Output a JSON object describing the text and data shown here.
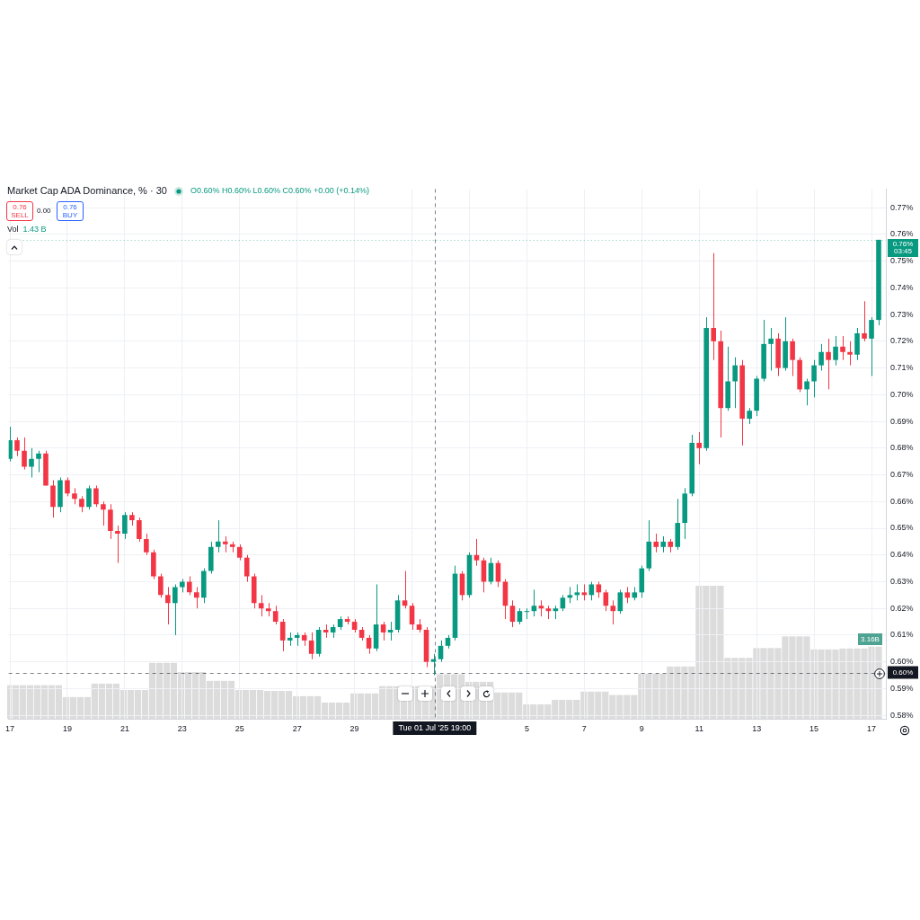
{
  "chart_data": [
    {
      "type": "candlestick",
      "title": "Market Cap ADA Dominance, % · 30",
      "annotations": [
        "O0.60% H0.60% L0.60% C0.60% +0.00 (+0.14%)",
        "0.76",
        "SELL",
        "0.00",
        "0.76",
        "BUY",
        "Vol",
        "1.43 B"
      ],
      "x": [
        "2025-06-17T00:00",
        "2025-06-17T06:00",
        "2025-06-17T12:00",
        "2025-06-17T18:00",
        "2025-06-18T00:00",
        "2025-06-18T06:00",
        "2025-06-18T12:00",
        "2025-06-18T18:00",
        "2025-06-19T00:00",
        "2025-06-19T06:00",
        "2025-06-19T12:00",
        "2025-06-19T18:00",
        "2025-06-20T00:00",
        "2025-06-20T06:00",
        "2025-06-20T12:00",
        "2025-06-20T18:00",
        "2025-06-21T00:00",
        "2025-06-21T06:00",
        "2025-06-21T12:00",
        "2025-06-21T18:00",
        "2025-06-22T00:00",
        "2025-06-22T06:00",
        "2025-06-22T12:00",
        "2025-06-22T18:00",
        "2025-06-23T00:00",
        "2025-06-23T06:00",
        "2025-06-23T12:00",
        "2025-06-23T18:00",
        "2025-06-24T00:00",
        "2025-06-24T06:00",
        "2025-06-24T12:00",
        "2025-06-24T18:00",
        "2025-06-25T00:00",
        "2025-06-25T06:00",
        "2025-06-25T12:00",
        "2025-06-25T18:00",
        "2025-06-26T00:00",
        "2025-06-26T06:00",
        "2025-06-26T12:00",
        "2025-06-26T18:00",
        "2025-06-27T00:00",
        "2025-06-27T06:00",
        "2025-06-27T12:00",
        "2025-06-27T18:00",
        "2025-06-28T00:00",
        "2025-06-28T06:00",
        "2025-06-28T12:00",
        "2025-06-28T18:00",
        "2025-06-29T00:00",
        "2025-06-29T06:00",
        "2025-06-29T12:00",
        "2025-06-29T18:00",
        "2025-06-30T00:00",
        "2025-06-30T06:00",
        "2025-06-30T12:00",
        "2025-06-30T18:00",
        "2025-07-01T00:00",
        "2025-07-01T06:00",
        "2025-07-01T12:00",
        "2025-07-01T18:00",
        "2025-07-02T00:00",
        "2025-07-02T06:00",
        "2025-07-02T12:00",
        "2025-07-02T18:00",
        "2025-07-03T00:00",
        "2025-07-03T06:00",
        "2025-07-03T12:00",
        "2025-07-03T18:00",
        "2025-07-04T00:00",
        "2025-07-04T06:00",
        "2025-07-04T12:00",
        "2025-07-04T18:00",
        "2025-07-05T00:00",
        "2025-07-05T06:00",
        "2025-07-05T12:00",
        "2025-07-05T18:00",
        "2025-07-06T00:00",
        "2025-07-06T06:00",
        "2025-07-06T12:00",
        "2025-07-06T18:00",
        "2025-07-07T00:00",
        "2025-07-07T06:00",
        "2025-07-07T12:00",
        "2025-07-07T18:00",
        "2025-07-08T00:00",
        "2025-07-08T06:00",
        "2025-07-08T12:00",
        "2025-07-08T18:00",
        "2025-07-09T00:00",
        "2025-07-09T06:00",
        "2025-07-09T12:00",
        "2025-07-09T18:00",
        "2025-07-10T00:00",
        "2025-07-10T06:00",
        "2025-07-10T12:00",
        "2025-07-10T18:00",
        "2025-07-11T00:00",
        "2025-07-11T06:00",
        "2025-07-11T12:00",
        "2025-07-11T18:00",
        "2025-07-12T00:00",
        "2025-07-12T06:00",
        "2025-07-12T12:00",
        "2025-07-12T18:00",
        "2025-07-13T00:00",
        "2025-07-13T06:00",
        "2025-07-13T12:00",
        "2025-07-13T18:00",
        "2025-07-14T00:00",
        "2025-07-14T06:00",
        "2025-07-14T12:00",
        "2025-07-14T18:00",
        "2025-07-15T00:00",
        "2025-07-15T06:00",
        "2025-07-15T12:00",
        "2025-07-15T18:00",
        "2025-07-16T00:00",
        "2025-07-16T06:00",
        "2025-07-16T12:00",
        "2025-07-16T18:00",
        "2025-07-17T00:00",
        "2025-07-17T06:00"
      ],
      "ohlc": [
        [
          0.676,
          0.688,
          0.675,
          0.683
        ],
        [
          0.683,
          0.684,
          0.677,
          0.679
        ],
        [
          0.679,
          0.684,
          0.672,
          0.673
        ],
        [
          0.673,
          0.68,
          0.669,
          0.676
        ],
        [
          0.676,
          0.679,
          0.671,
          0.678
        ],
        [
          0.678,
          0.679,
          0.666,
          0.666
        ],
        [
          0.666,
          0.668,
          0.654,
          0.658
        ],
        [
          0.658,
          0.669,
          0.656,
          0.668
        ],
        [
          0.668,
          0.669,
          0.662,
          0.663
        ],
        [
          0.663,
          0.665,
          0.659,
          0.661
        ],
        [
          0.661,
          0.662,
          0.656,
          0.658
        ],
        [
          0.658,
          0.666,
          0.657,
          0.665
        ],
        [
          0.665,
          0.666,
          0.658,
          0.659
        ],
        [
          0.659,
          0.66,
          0.651,
          0.657
        ],
        [
          0.657,
          0.659,
          0.646,
          0.649
        ],
        [
          0.649,
          0.651,
          0.637,
          0.648
        ],
        [
          0.648,
          0.656,
          0.646,
          0.655
        ],
        [
          0.655,
          0.656,
          0.651,
          0.653
        ],
        [
          0.653,
          0.654,
          0.645,
          0.646
        ],
        [
          0.646,
          0.648,
          0.64,
          0.641
        ],
        [
          0.641,
          0.642,
          0.631,
          0.632
        ],
        [
          0.632,
          0.633,
          0.624,
          0.625
        ],
        [
          0.625,
          0.628,
          0.614,
          0.622
        ],
        [
          0.622,
          0.629,
          0.61,
          0.628
        ],
        [
          0.628,
          0.631,
          0.626,
          0.63
        ],
        [
          0.63,
          0.632,
          0.625,
          0.626
        ],
        [
          0.626,
          0.628,
          0.62,
          0.624
        ],
        [
          0.624,
          0.635,
          0.622,
          0.634
        ],
        [
          0.634,
          0.645,
          0.633,
          0.643
        ],
        [
          0.643,
          0.653,
          0.641,
          0.645
        ],
        [
          0.645,
          0.647,
          0.641,
          0.644
        ],
        [
          0.644,
          0.645,
          0.641,
          0.643
        ],
        [
          0.643,
          0.644,
          0.638,
          0.639
        ],
        [
          0.639,
          0.64,
          0.63,
          0.632
        ],
        [
          0.632,
          0.633,
          0.62,
          0.622
        ],
        [
          0.622,
          0.625,
          0.617,
          0.62
        ],
        [
          0.62,
          0.622,
          0.617,
          0.619
        ],
        [
          0.619,
          0.621,
          0.614,
          0.615
        ],
        [
          0.615,
          0.616,
          0.604,
          0.608
        ],
        [
          0.608,
          0.611,
          0.606,
          0.609
        ],
        [
          0.609,
          0.611,
          0.606,
          0.61
        ],
        [
          0.61,
          0.611,
          0.606,
          0.608
        ],
        [
          0.608,
          0.611,
          0.601,
          0.603
        ],
        [
          0.603,
          0.613,
          0.602,
          0.612
        ],
        [
          0.612,
          0.614,
          0.609,
          0.611
        ],
        [
          0.611,
          0.614,
          0.609,
          0.613
        ],
        [
          0.613,
          0.617,
          0.612,
          0.616
        ],
        [
          0.616,
          0.617,
          0.614,
          0.615
        ],
        [
          0.615,
          0.616,
          0.611,
          0.612
        ],
        [
          0.612,
          0.613,
          0.608,
          0.609
        ],
        [
          0.609,
          0.61,
          0.603,
          0.605
        ],
        [
          0.605,
          0.629,
          0.604,
          0.614
        ],
        [
          0.614,
          0.615,
          0.608,
          0.611
        ],
        [
          0.611,
          0.615,
          0.608,
          0.612
        ],
        [
          0.612,
          0.625,
          0.611,
          0.623
        ],
        [
          0.623,
          0.634,
          0.62,
          0.621
        ],
        [
          0.621,
          0.622,
          0.612,
          0.614
        ],
        [
          0.614,
          0.616,
          0.611,
          0.612
        ],
        [
          0.612,
          0.613,
          0.598,
          0.6
        ],
        [
          0.6,
          0.603,
          0.595,
          0.601
        ],
        [
          0.601,
          0.608,
          0.6,
          0.606
        ],
        [
          0.606,
          0.61,
          0.605,
          0.609
        ],
        [
          0.609,
          0.636,
          0.608,
          0.633
        ],
        [
          0.633,
          0.634,
          0.623,
          0.625
        ],
        [
          0.625,
          0.641,
          0.624,
          0.64
        ],
        [
          0.64,
          0.646,
          0.636,
          0.638
        ],
        [
          0.638,
          0.639,
          0.626,
          0.63
        ],
        [
          0.63,
          0.639,
          0.629,
          0.637
        ],
        [
          0.637,
          0.638,
          0.628,
          0.63
        ],
        [
          0.63,
          0.631,
          0.616,
          0.621
        ],
        [
          0.621,
          0.623,
          0.613,
          0.615
        ],
        [
          0.615,
          0.62,
          0.614,
          0.619
        ],
        [
          0.619,
          0.62,
          0.616,
          0.619
        ],
        [
          0.619,
          0.627,
          0.617,
          0.621
        ],
        [
          0.621,
          0.623,
          0.617,
          0.62
        ],
        [
          0.62,
          0.621,
          0.616,
          0.619
        ],
        [
          0.619,
          0.621,
          0.616,
          0.62
        ],
        [
          0.62,
          0.625,
          0.619,
          0.624
        ],
        [
          0.624,
          0.628,
          0.622,
          0.625
        ],
        [
          0.625,
          0.629,
          0.623,
          0.626
        ],
        [
          0.626,
          0.629,
          0.623,
          0.625
        ],
        [
          0.625,
          0.63,
          0.623,
          0.629
        ],
        [
          0.629,
          0.63,
          0.624,
          0.626
        ],
        [
          0.626,
          0.627,
          0.619,
          0.621
        ],
        [
          0.621,
          0.623,
          0.614,
          0.619
        ],
        [
          0.619,
          0.627,
          0.618,
          0.626
        ],
        [
          0.626,
          0.628,
          0.622,
          0.624
        ],
        [
          0.624,
          0.628,
          0.623,
          0.626
        ],
        [
          0.626,
          0.636,
          0.624,
          0.635
        ],
        [
          0.635,
          0.653,
          0.634,
          0.645
        ],
        [
          0.645,
          0.648,
          0.641,
          0.643
        ],
        [
          0.643,
          0.647,
          0.641,
          0.645
        ],
        [
          0.645,
          0.646,
          0.641,
          0.643
        ],
        [
          0.643,
          0.661,
          0.642,
          0.652
        ],
        [
          0.652,
          0.665,
          0.646,
          0.663
        ],
        [
          0.663,
          0.685,
          0.662,
          0.682
        ],
        [
          0.682,
          0.686,
          0.674,
          0.68
        ],
        [
          0.68,
          0.729,
          0.679,
          0.725
        ],
        [
          0.725,
          0.753,
          0.713,
          0.72
        ],
        [
          0.72,
          0.724,
          0.684,
          0.695
        ],
        [
          0.695,
          0.718,
          0.694,
          0.705
        ],
        [
          0.705,
          0.714,
          0.695,
          0.711
        ],
        [
          0.711,
          0.713,
          0.681,
          0.691
        ],
        [
          0.691,
          0.695,
          0.689,
          0.694
        ],
        [
          0.694,
          0.707,
          0.692,
          0.706
        ],
        [
          0.706,
          0.728,
          0.705,
          0.719
        ],
        [
          0.719,
          0.725,
          0.709,
          0.721
        ],
        [
          0.721,
          0.723,
          0.707,
          0.71
        ],
        [
          0.71,
          0.729,
          0.709,
          0.72
        ],
        [
          0.72,
          0.721,
          0.707,
          0.713
        ],
        [
          0.713,
          0.714,
          0.701,
          0.702
        ],
        [
          0.702,
          0.706,
          0.696,
          0.705
        ],
        [
          0.705,
          0.713,
          0.699,
          0.711
        ],
        [
          0.711,
          0.719,
          0.709,
          0.716
        ],
        [
          0.716,
          0.721,
          0.702,
          0.713
        ],
        [
          0.713,
          0.722,
          0.711,
          0.718
        ],
        [
          0.718,
          0.722,
          0.713,
          0.716
        ],
        [
          0.716,
          0.72,
          0.711,
          0.715
        ],
        [
          0.715,
          0.725,
          0.713,
          0.723
        ],
        [
          0.723,
          0.735,
          0.72,
          0.721
        ],
        [
          0.721,
          0.729,
          0.707,
          0.728
        ],
        [
          0.728,
          0.758,
          0.726,
          0.758
        ]
      ],
      "colors": [
        "#089981",
        "#f23645",
        "#f23645",
        "#089981",
        "#089981",
        "#f23645",
        "#f23645",
        "#089981",
        "#f23645",
        "#f23645",
        "#f23645",
        "#089981",
        "#f23645",
        "#f23645",
        "#f23645",
        "#f23645",
        "#089981",
        "#f23645",
        "#f23645",
        "#f23645",
        "#f23645",
        "#f23645",
        "#f23645",
        "#089981",
        "#089981",
        "#f23645",
        "#f23645",
        "#089981",
        "#089981",
        "#089981",
        "#f23645",
        "#f23645",
        "#f23645",
        "#f23645",
        "#f23645",
        "#f23645",
        "#f23645",
        "#f23645",
        "#f23645",
        "#089981",
        "#089981",
        "#f23645",
        "#f23645",
        "#089981",
        "#f23645",
        "#089981",
        "#089981",
        "#f23645",
        "#f23645",
        "#f23645",
        "#f23645",
        "#089981",
        "#f23645",
        "#089981",
        "#089981",
        "#f23645",
        "#f23645",
        "#f23645",
        "#f23645",
        "#089981",
        "#089981",
        "#089981",
        "#089981",
        "#f23645",
        "#089981",
        "#f23645",
        "#f23645",
        "#089981",
        "#f23645",
        "#f23645",
        "#f23645",
        "#089981",
        "#089981",
        "#089981",
        "#f23645",
        "#f23645",
        "#089981",
        "#089981",
        "#089981",
        "#089981",
        "#f23645",
        "#089981",
        "#f23645",
        "#f23645",
        "#f23645",
        "#089981",
        "#f23645",
        "#089981",
        "#089981",
        "#089981",
        "#f23645",
        "#089981",
        "#f23645",
        "#089981",
        "#089981",
        "#089981",
        "#f23645",
        "#089981",
        "#f23645",
        "#f23645",
        "#089981",
        "#089981",
        "#f23645",
        "#089981",
        "#089981",
        "#089981",
        "#089981",
        "#f23645",
        "#089981",
        "#f23645",
        "#f23645",
        "#089981",
        "#089981",
        "#089981",
        "#f23645",
        "#089981",
        "#f23645",
        "#f23645",
        "#089981",
        "#f23645",
        "#089981",
        "#089981"
      ],
      "xlim": [
        "2025-06-16T23:00",
        "2025-07-17T12:00"
      ],
      "ylim": [
        0.5787,
        0.777
      ],
      "xticks": [
        {
          "value": "2025-06-17",
          "label": "17"
        },
        {
          "value": "2025-06-19",
          "label": "19"
        },
        {
          "value": "2025-06-21",
          "label": "21"
        },
        {
          "value": "2025-06-23",
          "label": "23"
        },
        {
          "value": "2025-06-25",
          "label": "25"
        },
        {
          "value": "2025-06-27",
          "label": "27"
        },
        {
          "value": "2025-06-29",
          "label": "29"
        },
        {
          "value": "2025-07-01",
          "label": null
        },
        {
          "value": "2025-07-03",
          "label": null
        },
        {
          "value": "2025-07-05",
          "label": "5"
        },
        {
          "value": "2025-07-07",
          "label": "7"
        },
        {
          "value": "2025-07-09",
          "label": "9"
        },
        {
          "value": "2025-07-11",
          "label": "11"
        },
        {
          "value": "2025-07-13",
          "label": "13"
        },
        {
          "value": "2025-07-15",
          "label": "15"
        },
        {
          "value": "2025-07-17",
          "label": "17"
        }
      ],
      "yticks": [
        {
          "value": 0.58,
          "label": "0.58%"
        },
        {
          "value": 0.59,
          "label": "0.59%"
        },
        {
          "value": 0.6,
          "label": "0.60%"
        },
        {
          "value": 0.61,
          "label": "0.61%"
        },
        {
          "value": 0.62,
          "label": "0.62%"
        },
        {
          "value": 0.63,
          "label": "0.63%"
        },
        {
          "value": 0.64,
          "label": "0.64%"
        },
        {
          "value": 0.65,
          "label": "0.65%"
        },
        {
          "value": 0.66,
          "label": "0.66%"
        },
        {
          "value": 0.67,
          "label": "0.67%"
        },
        {
          "value": 0.68,
          "label": "0.68%"
        },
        {
          "value": 0.69,
          "label": "0.69%"
        },
        {
          "value": 0.7,
          "label": "0.70%"
        },
        {
          "value": 0.71,
          "label": "0.71%"
        },
        {
          "value": 0.72,
          "label": "0.72%"
        },
        {
          "value": 0.73,
          "label": "0.73%"
        },
        {
          "value": 0.74,
          "label": "0.74%"
        },
        {
          "value": 0.75,
          "label": "0.75%"
        },
        {
          "value": 0.76,
          "label": "0.76%"
        },
        {
          "value": 0.77,
          "label": "0.77%"
        }
      ],
      "grid": true,
      "ref_lines": [
        {
          "axis": "y",
          "value": 0.758,
          "label": "0.76%\n03:45",
          "color": "#089981",
          "line_style": "dotted"
        },
        {
          "axis": "y",
          "value": 0.596,
          "label": "0.60%",
          "color": "#131722",
          "line_style": "dashed"
        },
        {
          "axis": "x",
          "value": "2025-07-01T19:00",
          "label": "Tue 01 Jul '25 19:00",
          "color": "#131722",
          "line_style": "dashed"
        }
      ]
    },
    {
      "type": "bar",
      "color": "#dcdcdc",
      "tick_labels": false,
      "xlim": [
        "2025-06-16T23:00",
        "2025-07-17T12:00"
      ],
      "x": [
        "2025-06-17T00:00",
        "2025-06-17T06:00",
        "2025-06-17T12:00",
        "2025-06-17T18:00",
        "2025-06-18T00:00",
        "2025-06-18T06:00",
        "2025-06-18T12:00",
        "2025-06-18T18:00",
        "2025-06-19T00:00",
        "2025-06-19T06:00",
        "2025-06-19T12:00",
        "2025-06-19T18:00",
        "2025-06-20T00:00",
        "2025-06-20T06:00",
        "2025-06-20T12:00",
        "2025-06-20T18:00",
        "2025-06-21T00:00",
        "2025-06-21T06:00",
        "2025-06-21T12:00",
        "2025-06-21T18:00",
        "2025-06-22T00:00",
        "2025-06-22T06:00",
        "2025-06-22T12:00",
        "2025-06-22T18:00",
        "2025-06-23T00:00",
        "2025-06-23T06:00",
        "2025-06-23T12:00",
        "2025-06-23T18:00",
        "2025-06-24T00:00",
        "2025-06-24T06:00",
        "2025-06-24T12:00",
        "2025-06-24T18:00",
        "2025-06-25T00:00",
        "2025-06-25T06:00",
        "2025-06-25T12:00",
        "2025-06-25T18:00",
        "2025-06-26T00:00",
        "2025-06-26T06:00",
        "2025-06-26T12:00",
        "2025-06-26T18:00",
        "2025-06-27T00:00",
        "2025-06-27T06:00",
        "2025-06-27T12:00",
        "2025-06-27T18:00",
        "2025-06-28T00:00",
        "2025-06-28T06:00",
        "2025-06-28T12:00",
        "2025-06-28T18:00",
        "2025-06-29T00:00",
        "2025-06-29T06:00",
        "2025-06-29T12:00",
        "2025-06-29T18:00",
        "2025-06-30T00:00",
        "2025-06-30T06:00",
        "2025-06-30T12:00",
        "2025-06-30T18:00",
        "2025-07-01T00:00",
        "2025-07-01T06:00",
        "2025-07-01T12:00",
        "2025-07-01T18:00",
        "2025-07-02T00:00",
        "2025-07-02T06:00",
        "2025-07-02T12:00",
        "2025-07-02T18:00",
        "2025-07-03T00:00",
        "2025-07-03T06:00",
        "2025-07-03T12:00",
        "2025-07-03T18:00",
        "2025-07-04T00:00",
        "2025-07-04T06:00",
        "2025-07-04T12:00",
        "2025-07-04T18:00",
        "2025-07-05T00:00",
        "2025-07-05T06:00",
        "2025-07-05T12:00",
        "2025-07-05T18:00",
        "2025-07-06T00:00",
        "2025-07-06T06:00",
        "2025-07-06T12:00",
        "2025-07-06T18:00",
        "2025-07-07T00:00",
        "2025-07-07T06:00",
        "2025-07-07T12:00",
        "2025-07-07T18:00",
        "2025-07-08T00:00",
        "2025-07-08T06:00",
        "2025-07-08T12:00",
        "2025-07-08T18:00",
        "2025-07-09T00:00",
        "2025-07-09T06:00",
        "2025-07-09T12:00",
        "2025-07-09T18:00",
        "2025-07-10T00:00",
        "2025-07-10T06:00",
        "2025-07-10T12:00",
        "2025-07-10T18:00",
        "2025-07-11T00:00",
        "2025-07-11T06:00",
        "2025-07-11T12:00",
        "2025-07-11T18:00",
        "2025-07-12T00:00",
        "2025-07-12T06:00",
        "2025-07-12T12:00",
        "2025-07-12T18:00",
        "2025-07-13T00:00",
        "2025-07-13T06:00",
        "2025-07-13T12:00",
        "2025-07-13T18:00",
        "2025-07-14T00:00",
        "2025-07-14T06:00",
        "2025-07-14T12:00",
        "2025-07-14T18:00",
        "2025-07-15T00:00",
        "2025-07-15T06:00",
        "2025-07-15T12:00",
        "2025-07-15T18:00",
        "2025-07-16T00:00",
        "2025-07-16T06:00",
        "2025-07-16T12:00",
        "2025-07-16T18:00",
        "2025-07-17T00:00",
        "2025-07-17T06:00"
      ],
      "values": [
        1.47,
        1.47,
        1.47,
        1.47,
        1.47,
        1.47,
        1.47,
        1.47,
        0.95,
        0.95,
        0.95,
        0.95,
        1.54,
        1.54,
        1.54,
        1.54,
        1.26,
        1.26,
        1.26,
        1.26,
        2.45,
        2.45,
        2.45,
        2.45,
        2.05,
        2.05,
        2.05,
        2.05,
        1.66,
        1.66,
        1.66,
        1.66,
        1.26,
        1.26,
        1.26,
        1.26,
        1.22,
        1.22,
        1.22,
        1.22,
        0.99,
        0.99,
        0.99,
        0.99,
        0.71,
        0.71,
        0.71,
        0.71,
        1.11,
        1.11,
        1.11,
        1.11,
        1.43,
        1.43,
        1.43,
        1.43,
        1.43,
        1.43,
        1.43,
        1.43,
        1.95,
        1.95,
        1.95,
        1.95,
        1.62,
        1.62,
        1.62,
        1.62,
        1.15,
        1.15,
        1.15,
        1.15,
        0.63,
        0.63,
        0.63,
        0.63,
        0.83,
        0.83,
        0.83,
        0.83,
        1.19,
        1.19,
        1.19,
        1.19,
        1.04,
        1.04,
        1.04,
        1.04,
        1.98,
        1.98,
        1.98,
        1.98,
        2.29,
        2.29,
        2.29,
        2.29,
        5.83,
        5.83,
        5.83,
        5.83,
        2.67,
        2.67,
        2.67,
        2.67,
        3.1,
        3.1,
        3.1,
        3.1,
        3.61,
        3.61,
        3.61,
        3.61,
        3.04,
        3.04,
        3.04,
        3.04,
        3.08,
        3.08,
        3.08,
        3.08,
        3.16,
        3.16
      ],
      "value_labels": [
        null,
        null,
        null,
        null,
        null,
        null,
        null,
        null,
        null,
        null,
        null,
        null,
        null,
        null,
        null,
        null,
        null,
        null,
        null,
        null,
        null,
        null,
        null,
        null,
        null,
        null,
        null,
        null,
        null,
        null,
        null,
        null,
        null,
        null,
        null,
        null,
        null,
        null,
        null,
        null,
        null,
        null,
        null,
        null,
        null,
        null,
        null,
        null,
        null,
        null,
        null,
        null,
        null,
        null,
        null,
        null,
        null,
        null,
        null,
        null,
        null,
        null,
        null,
        null,
        null,
        null,
        null,
        null,
        null,
        null,
        null,
        null,
        null,
        null,
        null,
        null,
        null,
        null,
        null,
        null,
        null,
        null,
        null,
        null,
        null,
        null,
        null,
        null,
        null,
        null,
        null,
        null,
        null,
        null,
        null,
        null,
        null,
        null,
        null,
        null,
        null,
        null,
        null,
        null,
        null,
        null,
        null,
        null,
        null,
        null,
        null,
        null,
        null,
        null,
        null,
        null,
        null,
        null,
        null,
        null,
        null,
        "3.16B"
      ]
    }
  ]
}
